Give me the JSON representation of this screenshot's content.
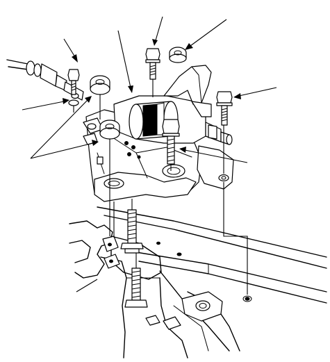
{
  "figure": {
    "kind": "exploded-parts-diagram",
    "subject": "bracket-mount-assembly",
    "colors": {
      "line": "#000000",
      "background": "#ffffff"
    },
    "callouts": [
      {
        "id": "callout-connector-bolt-arrow",
        "points_to": "bolt"
      },
      {
        "id": "callout-bracket-arrow",
        "points_to": "bracket"
      },
      {
        "id": "callout-top-bolt-arrow",
        "points_to": "bolt"
      },
      {
        "id": "callout-top-nut-arrow",
        "points_to": "nut"
      },
      {
        "id": "callout-right-bolt-arrow",
        "points_to": "bolt"
      },
      {
        "id": "callout-washer-arrow",
        "points_to": "washer"
      },
      {
        "id": "callout-nuts-arrows",
        "points_to": "nut"
      },
      {
        "id": "callout-center-bolt-arrow",
        "points_to": "bolt"
      },
      {
        "id": "callout-lower-left-arrow",
        "points_to": "stud"
      }
    ]
  }
}
